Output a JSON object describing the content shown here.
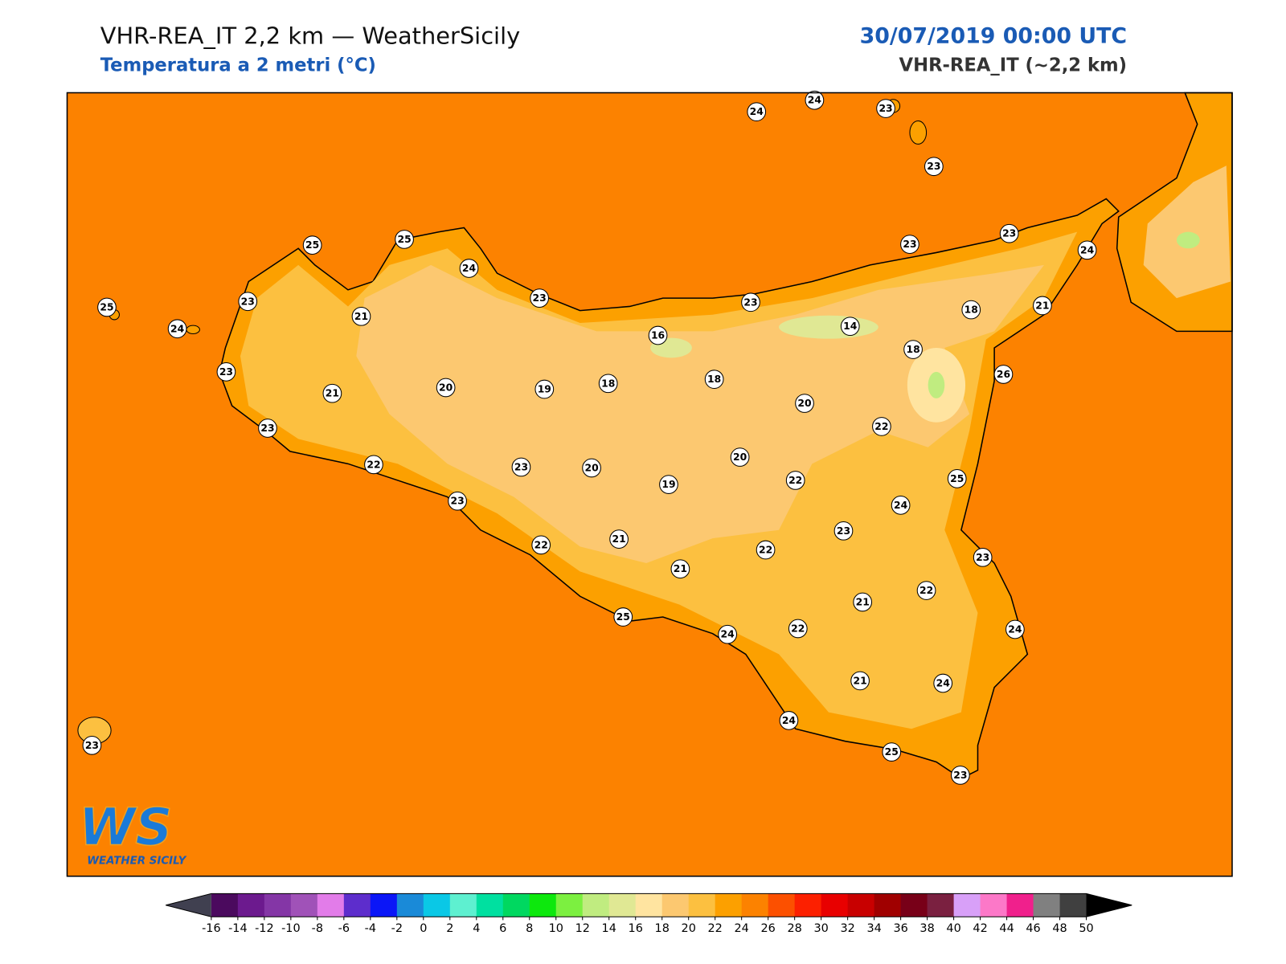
{
  "header": {
    "title": "VHR-REA_IT 2,2 km — WeatherSicily",
    "subtitle": "Temperatura a 2 metri (°C)",
    "datetime": "30/07/2019 00:00 UTC",
    "model": "VHR-REA_IT (~2,2 km)"
  },
  "stations": [
    24,
    24,
    23,
    23,
    25,
    25,
    24,
    23,
    23,
    24,
    25,
    23,
    23,
    23,
    21,
    24,
    14,
    18,
    21,
    16,
    18,
    23,
    26,
    20,
    19,
    18,
    18,
    21,
    20,
    23,
    22,
    20,
    22,
    23,
    20,
    19,
    22,
    25,
    23,
    24,
    23,
    22,
    21,
    22,
    21,
    23,
    21,
    22,
    25,
    24,
    22,
    24,
    21,
    24,
    24,
    25,
    23,
    23
  ],
  "logo": {
    "mark": "WS",
    "text": "WEATHER SICILY"
  },
  "colorbar": {
    "ticks": [
      -16,
      -14,
      -12,
      -10,
      -8,
      -6,
      -4,
      -2,
      0,
      2,
      4,
      6,
      8,
      10,
      12,
      14,
      16,
      18,
      20,
      22,
      24,
      26,
      28,
      30,
      32,
      34,
      36,
      38,
      40,
      42,
      44,
      46,
      48,
      50
    ],
    "colors": [
      "#4b0a5e",
      "#6c1a8e",
      "#8436a6",
      "#a052b8",
      "#e27ce9",
      "#5d2dcc",
      "#0b16f7",
      "#1a8ad8",
      "#0ac8e6",
      "#5ef0d0",
      "#00e0a0",
      "#00d860",
      "#0de80d",
      "#7cf040",
      "#c0ec80",
      "#e0e894",
      "#ffe4a0",
      "#fcc870",
      "#fcc040",
      "#fca000",
      "#fc8200",
      "#fc5000",
      "#fc2000",
      "#e80000",
      "#c80000",
      "#a00000",
      "#780018",
      "#7a2040",
      "#d8a0f8",
      "#fc78c8",
      "#f0208c",
      "#808080",
      "#404040"
    ],
    "under": "#404050",
    "over": "#000000"
  }
}
